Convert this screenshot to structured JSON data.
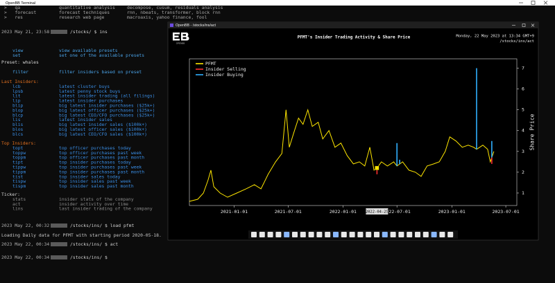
{
  "terminal": {
    "title": "OpenBB Terminal",
    "blocks": [
      [
        {
          "cmd": ">   qa",
          "desc": "quantitative analysis",
          "note": "decompose, cusum, residuals analysis",
          "color": "#a8a8a8"
        },
        {
          "cmd": ">   forecast",
          "desc": "forecast techniques",
          "note": "rnn, nbeats, transformer, block rnn",
          "color": "#a8a8a8"
        },
        {
          "cmd": ">   res",
          "desc": "research web page",
          "note": "macroaxis, yahoo finance, fool",
          "color": "#a8a8a8"
        }
      ],
      [
        {
          "prompt": "2023 May 21, 23:58",
          "path": "/stocks/ $ ins"
        }
      ],
      [
        {
          "cmd": "view",
          "desc": "view available presets",
          "color": "#4aa3e8"
        },
        {
          "cmd": "set",
          "desc": "set one of the available presets",
          "color": "#4aa3e8"
        }
      ],
      [
        {
          "text": "Preset: whales",
          "color": "#d8d8d8"
        }
      ],
      [
        {
          "cmd": "filter",
          "desc": "filter insiders based on preset",
          "color": "#4aa3e8"
        }
      ],
      [
        {
          "text": "Last Insiders:",
          "color": "#e07020"
        },
        {
          "cmd": "lcb",
          "desc": "latest cluster buys",
          "color": "#3a8ee6"
        },
        {
          "cmd": "lpsb",
          "desc": "latest penny stock buys",
          "color": "#3a8ee6"
        },
        {
          "cmd": "lit",
          "desc": "latest insider trading (all filings)",
          "color": "#3a8ee6"
        },
        {
          "cmd": "lip",
          "desc": "latest insider purchases",
          "color": "#3a8ee6"
        },
        {
          "cmd": "blip",
          "desc": "big latest insider purchases ($25k+)",
          "color": "#3a8ee6"
        },
        {
          "cmd": "blop",
          "desc": "big latest officer purchases ($25k+)",
          "color": "#3a8ee6"
        },
        {
          "cmd": "blcp",
          "desc": "big latest CEO/CFO purchases ($25k+)",
          "color": "#3a8ee6"
        },
        {
          "cmd": "lis",
          "desc": "latest insider sales",
          "color": "#3a8ee6"
        },
        {
          "cmd": "blis",
          "desc": "big latest insider sales ($100k+)",
          "color": "#3a8ee6"
        },
        {
          "cmd": "blos",
          "desc": "big latest officer sales ($100k+)",
          "color": "#3a8ee6"
        },
        {
          "cmd": "blcs",
          "desc": "big latest CEO/CFO sales ($100k+)",
          "color": "#3a8ee6"
        }
      ],
      [
        {
          "text": "Top Insiders:",
          "color": "#e07020"
        },
        {
          "cmd": "topt",
          "desc": "top officer purchases today",
          "color": "#3a8ee6"
        },
        {
          "cmd": "toppw",
          "desc": "top officer purchases past week",
          "color": "#3a8ee6"
        },
        {
          "cmd": "toppm",
          "desc": "top officer purchases past month",
          "color": "#3a8ee6"
        },
        {
          "cmd": "tipt",
          "desc": "top insider purchases today",
          "color": "#3a8ee6"
        },
        {
          "cmd": "tippw",
          "desc": "top insider purchases past week",
          "color": "#3a8ee6"
        },
        {
          "cmd": "tippm",
          "desc": "top insider purchases past month",
          "color": "#3a8ee6"
        },
        {
          "cmd": "tist",
          "desc": "top insider sales today",
          "color": "#3a8ee6"
        },
        {
          "cmd": "tispw",
          "desc": "top insider sales past week",
          "color": "#3a8ee6"
        },
        {
          "cmd": "tispm",
          "desc": "top insider sales past month",
          "color": "#3a8ee6"
        }
      ],
      [
        {
          "text": "Ticker:",
          "color": "#d8d8d8"
        },
        {
          "cmd": "stats",
          "desc": "insider stats of the company",
          "color": "#8a8a8a"
        },
        {
          "cmd": "act",
          "desc": "insider activity over time",
          "color": "#8a8a8a"
        },
        {
          "cmd": "lins",
          "desc": "last insider trading of the company",
          "color": "#8a8a8a"
        }
      ],
      [
        {
          "prompt": "2023 May 22, 00:32",
          "path": "/stocks/ins/ $ load pfmt"
        }
      ],
      [
        {
          "text": "Loading Daily data for PFMT with starting period 2020-05-18.",
          "color": "#c8c8c8"
        }
      ],
      [
        {
          "prompt": "2023 May 22, 00:34",
          "path": "/stocks/ins/ $ act"
        }
      ],
      [
        {
          "prompt": "2023 May 22, 00:34",
          "path": "/stocks/ins/ $"
        }
      ]
    ]
  },
  "window": {
    "title": "OpenBB - /stocks/ins/act",
    "logo_caption": "OPENBB",
    "date": "Monday, 22 May 2023 at 13:34 GMT+9",
    "path": "/stocks/ins/act"
  },
  "chart_data": {
    "type": "line",
    "title": "PFMT's Insider Trading Activity & Share Price",
    "y_label": "Share Price",
    "xlim": [
      "2020-08-04",
      "2023-08-07"
    ],
    "xticks": [
      "2021-01-01",
      "2021-07-01",
      "2022-01-01",
      "2022-07-01",
      "2023-01-01",
      "2023-07-01"
    ],
    "ylim": [
      0.4,
      7.45
    ],
    "yticks": [
      1,
      2,
      3,
      4,
      5,
      6,
      7
    ],
    "hover_label": "2022-04-25",
    "legend": "upper left",
    "series": [
      {
        "name": "PFMT",
        "color": "#ffe600",
        "x": [
          "2020-08-04",
          "2020-09-01",
          "2020-09-20",
          "2020-10-05",
          "2020-10-15",
          "2020-10-25",
          "2020-11-15",
          "2020-12-10",
          "2021-01-10",
          "2021-02-10",
          "2021-03-10",
          "2021-04-01",
          "2021-04-25",
          "2021-05-20",
          "2021-06-10",
          "2021-06-24",
          "2021-07-05",
          "2021-07-20",
          "2021-08-05",
          "2021-08-20",
          "2021-09-05",
          "2021-09-20",
          "2021-10-10",
          "2021-10-25",
          "2021-11-15",
          "2021-12-05",
          "2021-12-25",
          "2022-01-15",
          "2022-02-05",
          "2022-02-25",
          "2022-03-15",
          "2022-04-01",
          "2022-04-15",
          "2022-04-25",
          "2022-05-10",
          "2022-05-30",
          "2022-06-20",
          "2022-07-01",
          "2022-07-20",
          "2022-08-10",
          "2022-09-01",
          "2022-09-20",
          "2022-10-10",
          "2022-11-01",
          "2022-11-20",
          "2022-12-10",
          "2022-12-25",
          "2023-01-15",
          "2023-02-05",
          "2023-02-25",
          "2023-03-15",
          "2023-03-25",
          "2023-04-15",
          "2023-05-01",
          "2023-05-10",
          "2023-05-22"
        ],
        "values": [
          0.6,
          0.7,
          1.0,
          1.6,
          2.1,
          1.3,
          1.0,
          0.8,
          1.0,
          1.2,
          1.4,
          1.2,
          1.9,
          2.5,
          2.9,
          5.0,
          3.2,
          3.9,
          4.6,
          4.3,
          5.0,
          4.2,
          4.4,
          3.6,
          4.0,
          3.2,
          3.4,
          2.8,
          2.4,
          2.5,
          2.3,
          3.2,
          2.1,
          2.2,
          2.5,
          2.3,
          2.5,
          2.3,
          2.5,
          2.1,
          2.0,
          1.8,
          2.3,
          2.4,
          2.5,
          3.0,
          3.7,
          3.5,
          3.2,
          3.3,
          3.2,
          3.1,
          3.3,
          3.1,
          2.5,
          3.0
        ]
      },
      {
        "name": "Insider Selling",
        "color": "#ff3030",
        "x": [
          "2022-04-25",
          "2023-05-15"
        ],
        "values": [
          1.9,
          2.4
        ]
      },
      {
        "name": "Insider Buying",
        "color": "#30b0ff",
        "x": [
          "2022-07-01",
          "2022-07-10",
          "2023-03-25",
          "2023-05-15"
        ],
        "values": [
          3.4,
          2.6,
          7.0,
          3.5
        ]
      }
    ]
  }
}
